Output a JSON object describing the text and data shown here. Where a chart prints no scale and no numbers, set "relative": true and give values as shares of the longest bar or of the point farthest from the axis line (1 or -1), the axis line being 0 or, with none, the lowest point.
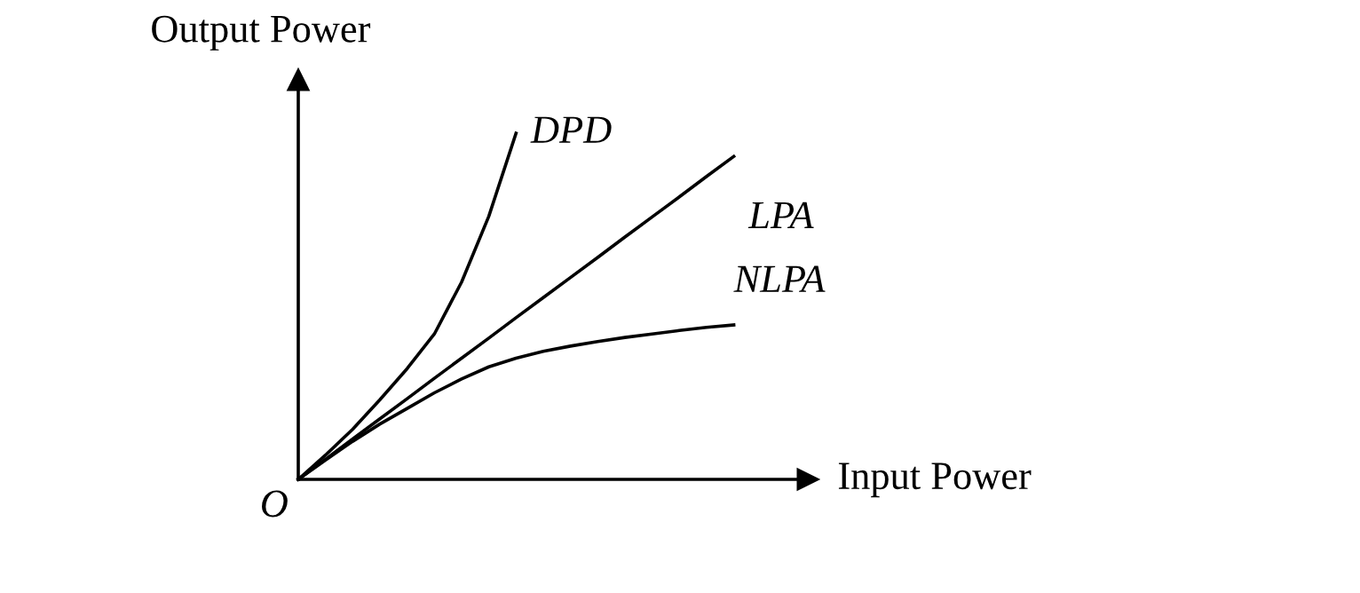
{
  "chart_data": {
    "type": "line",
    "relative": true,
    "xlabel": "Input Power",
    "ylabel": "Output Power",
    "annotations": [
      "O"
    ],
    "legend": false,
    "marker": "none",
    "line_style": "solid",
    "categories": [
      null,
      null,
      null,
      null,
      null,
      null,
      null,
      null,
      null,
      null,
      null,
      null,
      null,
      null,
      null,
      null,
      null
    ],
    "series": [
      {
        "name": "DPD",
        "color": "#000000",
        "values": [
          0,
          0.07,
          0.145,
          0.23,
          0.32,
          0.42,
          0.57,
          0.76,
          1.0,
          null,
          null,
          null,
          null,
          null,
          null,
          null,
          null
        ]
      },
      {
        "name": "LPA",
        "color": "#000000",
        "values": [
          0,
          0.058,
          0.117,
          0.175,
          0.233,
          0.292,
          0.35,
          0.408,
          0.467,
          0.525,
          0.583,
          0.641,
          0.7,
          0.758,
          0.816,
          0.875,
          0.933
        ]
      },
      {
        "name": "NLPA",
        "color": "#000000",
        "values": [
          0,
          0.056,
          0.11,
          0.16,
          0.205,
          0.25,
          0.29,
          0.325,
          0.35,
          0.37,
          0.385,
          0.398,
          0.41,
          0.42,
          0.43,
          0.439,
          0.446
        ]
      }
    ]
  }
}
